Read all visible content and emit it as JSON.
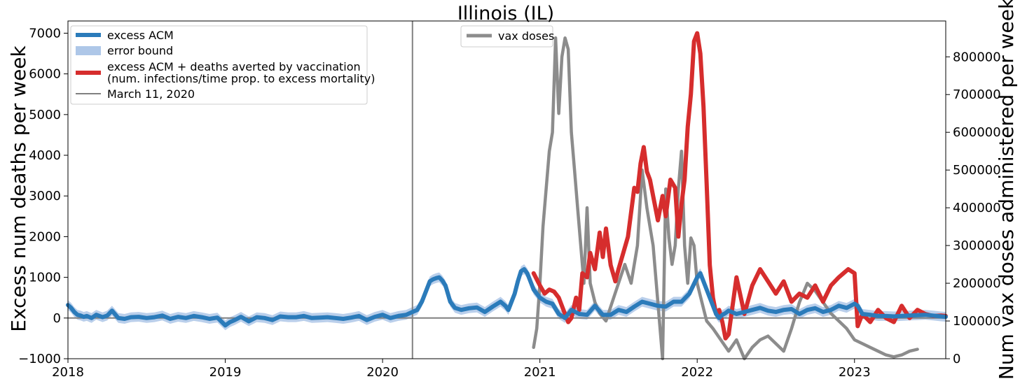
{
  "chart_data": {
    "type": "line",
    "title": "Illinois (IL)",
    "ylabel": "Excess num deaths per week",
    "y2label": "Num vax doses administered per week",
    "xlim": [
      2018.0,
      2023.58
    ],
    "ylim": [
      -1000,
      7300
    ],
    "y2lim": [
      0,
      895000
    ],
    "x_ticks": [
      "2018",
      "2019",
      "2020",
      "2021",
      "2022",
      "2023"
    ],
    "y_ticks": [
      "−1000",
      "0",
      "1000",
      "2000",
      "3000",
      "4000",
      "5000",
      "6000",
      "7000"
    ],
    "y2_ticks": [
      "0",
      "100000",
      "200000",
      "300000",
      "400000",
      "500000",
      "600000",
      "700000",
      "800000"
    ],
    "reference_line": {
      "label": "March 11, 2020",
      "x": 2020.19
    },
    "legend_left": [
      "excess ACM",
      "error bound",
      "excess ACM + deaths averted by vaccination",
      "(num. infections/time prop. to excess mortality)",
      "March 11, 2020"
    ],
    "legend_right": [
      "vax doses"
    ],
    "colors": {
      "excess_acm": "#2b7bba",
      "error_bound": "#aec7e8",
      "averted": "#d62d2d",
      "vax": "#8c8c8c",
      "reference": "#808080",
      "zero_line": "#808080"
    },
    "series": [
      {
        "name": "excess ACM",
        "axis": "left",
        "x": [
          2018.0,
          2018.02,
          2018.04,
          2018.06,
          2018.08,
          2018.1,
          2018.12,
          2018.15,
          2018.18,
          2018.22,
          2018.25,
          2018.28,
          2018.32,
          2018.36,
          2018.4,
          2018.45,
          2018.5,
          2018.55,
          2018.6,
          2018.65,
          2018.7,
          2018.75,
          2018.8,
          2018.85,
          2018.9,
          2018.95,
          2019.0,
          2019.03,
          2019.06,
          2019.1,
          2019.15,
          2019.2,
          2019.25,
          2019.3,
          2019.35,
          2019.4,
          2019.45,
          2019.5,
          2019.55,
          2019.6,
          2019.65,
          2019.7,
          2019.75,
          2019.8,
          2019.85,
          2019.9,
          2019.95,
          2020.0,
          2020.05,
          2020.1,
          2020.15,
          2020.19,
          2020.22,
          2020.25,
          2020.28,
          2020.3,
          2020.32,
          2020.34,
          2020.36,
          2020.38,
          2020.4,
          2020.43,
          2020.46,
          2020.5,
          2020.55,
          2020.6,
          2020.65,
          2020.7,
          2020.75,
          2020.78,
          2020.8,
          2020.82,
          2020.84,
          2020.86,
          2020.88,
          2020.9,
          2020.92,
          2020.94,
          2020.96,
          2021.0,
          2021.04,
          2021.08,
          2021.12,
          2021.16,
          2021.2,
          2021.25,
          2021.3,
          2021.35,
          2021.4,
          2021.45,
          2021.5,
          2021.55,
          2021.6,
          2021.65,
          2021.7,
          2021.75,
          2021.8,
          2021.85,
          2021.9,
          2021.95,
          2022.0,
          2022.02,
          2022.04,
          2022.06,
          2022.08,
          2022.1,
          2022.12,
          2022.14,
          2022.16,
          2022.18,
          2022.2,
          2022.25,
          2022.3,
          2022.35,
          2022.4,
          2022.45,
          2022.5,
          2022.55,
          2022.6,
          2022.65,
          2022.7,
          2022.75,
          2022.8,
          2022.85,
          2022.9,
          2022.95,
          2023.0,
          2023.02,
          2023.05,
          2023.1,
          2023.15,
          2023.2,
          2023.25,
          2023.3,
          2023.35,
          2023.4,
          2023.45,
          2023.5,
          2023.55,
          2023.58
        ],
        "values": [
          320,
          250,
          150,
          80,
          60,
          30,
          50,
          0,
          80,
          20,
          60,
          180,
          0,
          -20,
          20,
          30,
          0,
          20,
          60,
          -20,
          30,
          0,
          50,
          20,
          -20,
          10,
          -180,
          -100,
          -50,
          30,
          -80,
          20,
          0,
          -50,
          40,
          20,
          20,
          50,
          0,
          10,
          20,
          0,
          -20,
          10,
          50,
          -50,
          30,
          80,
          0,
          50,
          80,
          150,
          200,
          400,
          700,
          900,
          950,
          980,
          1000,
          920,
          800,
          400,
          250,
          200,
          240,
          260,
          150,
          280,
          400,
          300,
          200,
          400,
          600,
          900,
          1150,
          1200,
          1100,
          900,
          700,
          500,
          400,
          350,
          100,
          0,
          200,
          100,
          80,
          300,
          80,
          80,
          200,
          150,
          280,
          400,
          350,
          300,
          280,
          400,
          400,
          600,
          1000,
          1100,
          900,
          700,
          500,
          300,
          100,
          0,
          80,
          120,
          180,
          100,
          150,
          200,
          250,
          180,
          150,
          200,
          220,
          100,
          200,
          240,
          150,
          200,
          300,
          250,
          350,
          300,
          100,
          80,
          50,
          50,
          40,
          50,
          60,
          70,
          80,
          60,
          40,
          30
        ]
      },
      {
        "name": "excess ACM + deaths averted by vaccination",
        "axis": "left",
        "x": [
          2020.96,
          2021.0,
          2021.03,
          2021.06,
          2021.09,
          2021.12,
          2021.15,
          2021.18,
          2021.2,
          2021.23,
          2021.25,
          2021.27,
          2021.3,
          2021.32,
          2021.35,
          2021.38,
          2021.4,
          2021.42,
          2021.45,
          2021.48,
          2021.5,
          2021.53,
          2021.56,
          2021.6,
          2021.62,
          2021.64,
          2021.66,
          2021.68,
          2021.7,
          2021.72,
          2021.75,
          2021.78,
          2021.8,
          2021.83,
          2021.86,
          2021.88,
          2021.9,
          2021.92,
          2021.94,
          2021.96,
          2021.98,
          2022.0,
          2022.02,
          2022.04,
          2022.06,
          2022.08,
          2022.1,
          2022.12,
          2022.14,
          2022.16,
          2022.18,
          2022.2,
          2022.25,
          2022.3,
          2022.35,
          2022.4,
          2022.45,
          2022.5,
          2022.55,
          2022.6,
          2022.65,
          2022.7,
          2022.75,
          2022.8,
          2022.85,
          2022.9,
          2022.93,
          2022.96,
          2023.0,
          2023.02,
          2023.05,
          2023.1,
          2023.15,
          2023.2,
          2023.25,
          2023.3,
          2023.35,
          2023.4,
          2023.45,
          2023.5,
          2023.55,
          2023.58
        ],
        "values": [
          1100,
          800,
          600,
          700,
          650,
          500,
          200,
          -100,
          0,
          500,
          200,
          1100,
          1000,
          1600,
          1200,
          2100,
          1500,
          2200,
          1300,
          900,
          1200,
          1600,
          2000,
          3200,
          3100,
          3800,
          4200,
          3600,
          3400,
          3000,
          2400,
          3000,
          2500,
          3400,
          3200,
          2000,
          2800,
          3400,
          4700,
          5500,
          6800,
          7000,
          6500,
          5200,
          3300,
          1300,
          500,
          100,
          200,
          -100,
          -500,
          -400,
          1000,
          100,
          800,
          1200,
          900,
          600,
          900,
          400,
          600,
          500,
          800,
          400,
          800,
          1000,
          1100,
          1200,
          1100,
          -200,
          100,
          -100,
          200,
          0,
          -100,
          300,
          0,
          200,
          100,
          50,
          60,
          50
        ]
      },
      {
        "name": "vax doses",
        "axis": "right",
        "x": [
          2020.96,
          2020.98,
          2021.0,
          2021.02,
          2021.04,
          2021.06,
          2021.08,
          2021.1,
          2021.12,
          2021.14,
          2021.16,
          2021.18,
          2021.2,
          2021.22,
          2021.24,
          2021.26,
          2021.28,
          2021.3,
          2021.32,
          2021.35,
          2021.38,
          2021.42,
          2021.46,
          2021.5,
          2021.54,
          2021.58,
          2021.62,
          2021.65,
          2021.68,
          2021.7,
          2021.72,
          2021.74,
          2021.76,
          2021.78,
          2021.8,
          2021.82,
          2021.84,
          2021.86,
          2021.88,
          2021.9,
          2021.92,
          2021.94,
          2021.96,
          2021.98,
          2022.0,
          2022.03,
          2022.06,
          2022.1,
          2022.15,
          2022.2,
          2022.25,
          2022.3,
          2022.35,
          2022.4,
          2022.45,
          2022.5,
          2022.55,
          2022.6,
          2022.65,
          2022.7,
          2022.75,
          2022.8,
          2022.85,
          2022.9,
          2022.95,
          2023.0,
          2023.05,
          2023.1,
          2023.15,
          2023.2,
          2023.25,
          2023.3,
          2023.35,
          2023.4
        ],
        "values": [
          30000,
          80000,
          200000,
          350000,
          450000,
          550000,
          600000,
          850000,
          650000,
          800000,
          850000,
          820000,
          600000,
          500000,
          400000,
          300000,
          200000,
          400000,
          200000,
          150000,
          120000,
          100000,
          150000,
          200000,
          250000,
          200000,
          300000,
          500000,
          400000,
          350000,
          300000,
          200000,
          100000,
          0,
          450000,
          320000,
          250000,
          300000,
          450000,
          550000,
          300000,
          200000,
          320000,
          300000,
          200000,
          150000,
          100000,
          80000,
          50000,
          20000,
          50000,
          0,
          30000,
          50000,
          60000,
          40000,
          20000,
          80000,
          150000,
          200000,
          180000,
          150000,
          120000,
          100000,
          80000,
          50000,
          40000,
          30000,
          20000,
          10000,
          5000,
          10000,
          20000,
          25000
        ]
      }
    ]
  }
}
